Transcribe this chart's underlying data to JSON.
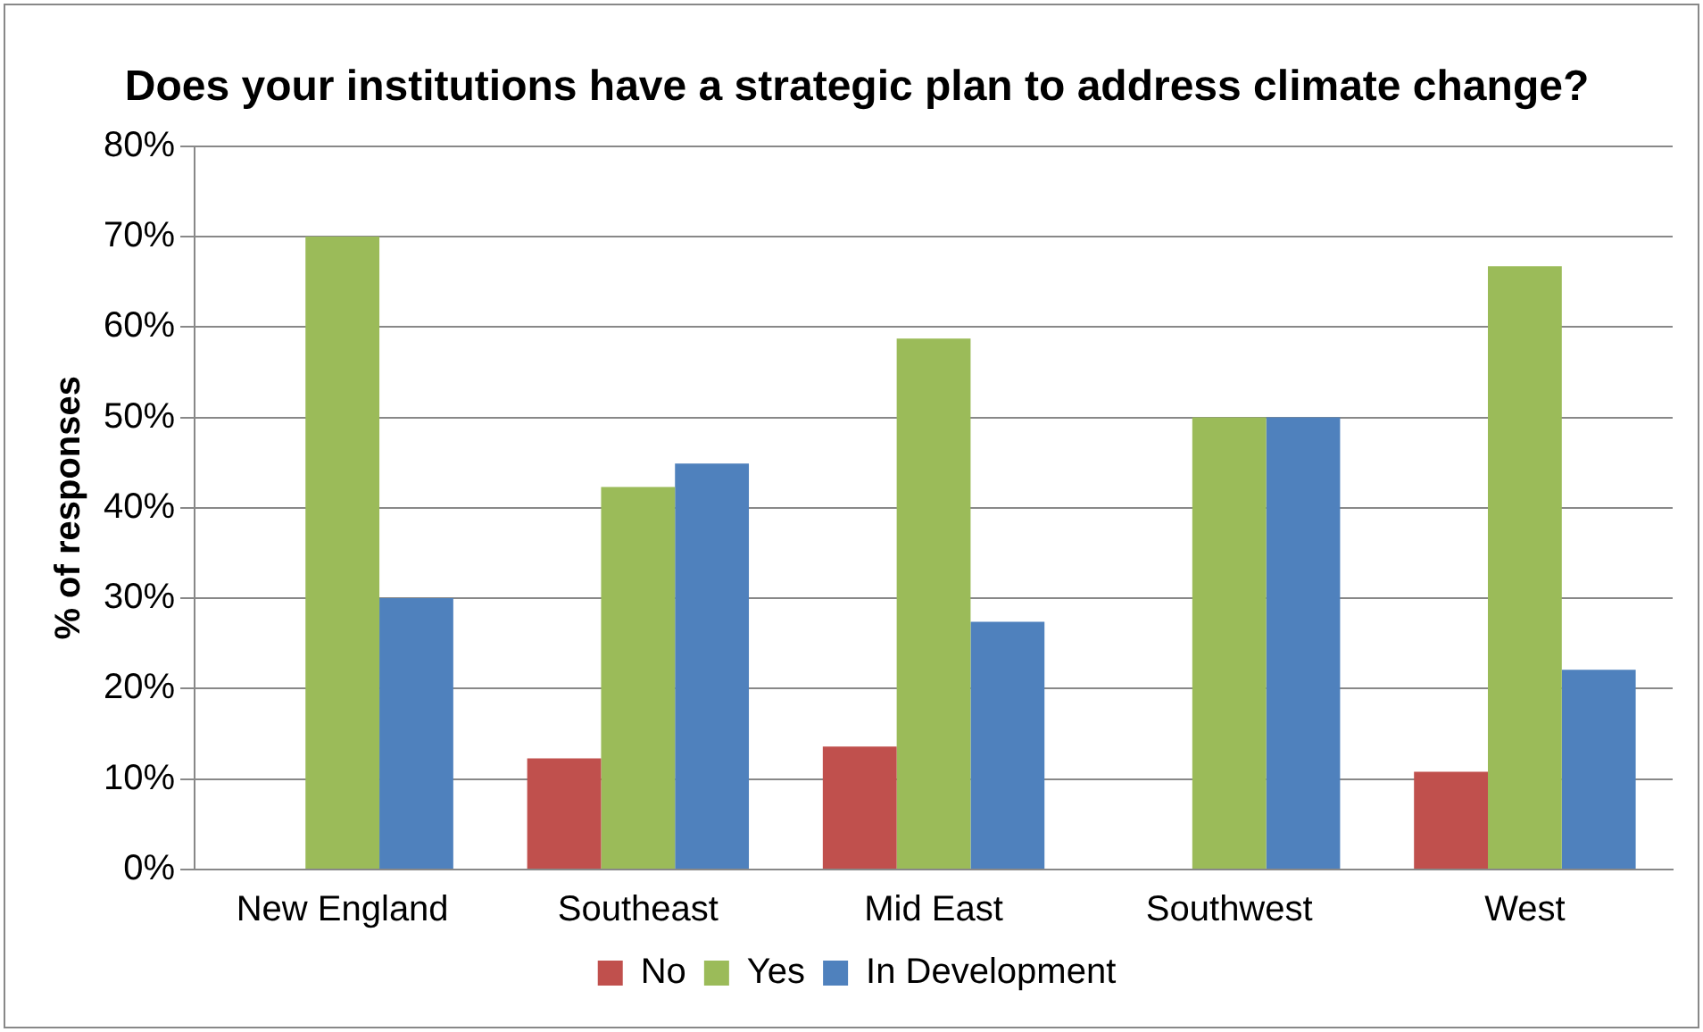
{
  "chart_data": {
    "type": "bar",
    "title": "Does your institutions have a strategic plan to address climate change?",
    "ylabel": "% of responses",
    "categories": [
      "New England",
      "Southeast",
      "Mid East",
      "Southwest",
      "West"
    ],
    "series": [
      {
        "name": "No",
        "color": "#c0504d",
        "values": [
          0,
          12.3,
          13.6,
          0,
          10.8
        ]
      },
      {
        "name": "Yes",
        "color": "#9bbb59",
        "values": [
          70,
          42.3,
          58.7,
          50,
          66.7
        ]
      },
      {
        "name": "In Development",
        "color": "#4f81bd",
        "values": [
          30,
          44.9,
          27.4,
          50,
          22.1
        ]
      }
    ],
    "ylim": [
      0,
      80
    ],
    "yticks": [
      {
        "value": 0,
        "label": "0%"
      },
      {
        "value": 10,
        "label": "10%"
      },
      {
        "value": 20,
        "label": "20%"
      },
      {
        "value": 30,
        "label": "30%"
      },
      {
        "value": 40,
        "label": "40%"
      },
      {
        "value": 50,
        "label": "50%"
      },
      {
        "value": 60,
        "label": "60%"
      },
      {
        "value": 70,
        "label": "70%"
      },
      {
        "value": 80,
        "label": "80%"
      }
    ],
    "grid": "y",
    "legend": "bottom"
  }
}
